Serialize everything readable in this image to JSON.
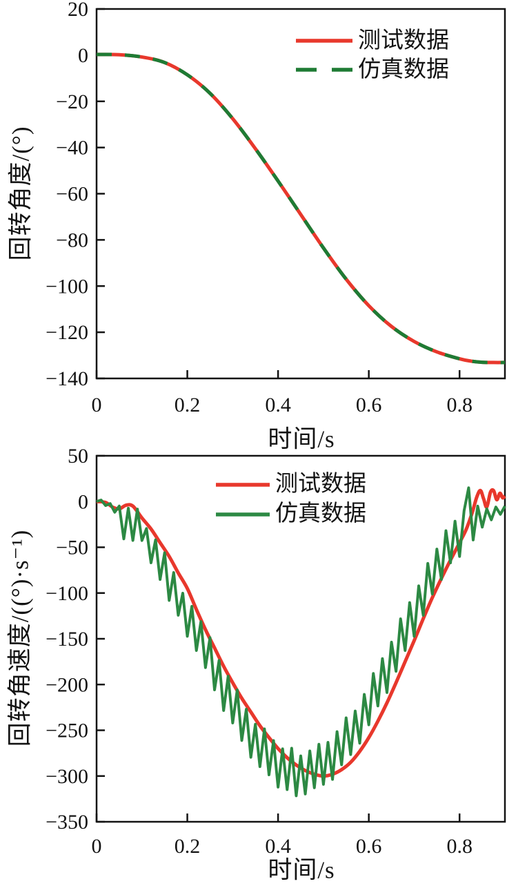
{
  "figure": {
    "background": "#ffffff",
    "axis_color": "#131313"
  },
  "chart_data": [
    {
      "id": "rotation-angle",
      "type": "line",
      "title": "",
      "grid": false,
      "legend_position": "top-right-inside",
      "x_axis": {
        "title": "时间/s",
        "min": 0,
        "max": 0.9,
        "ticks": [
          0,
          0.2,
          0.4,
          0.6,
          0.8
        ],
        "tick_labels": [
          "0",
          "0.2",
          "0.4",
          "0.6",
          "0.8"
        ]
      },
      "y_axis": {
        "title": "回转角度/(°)",
        "min": -140,
        "max": 20,
        "ticks": [
          20,
          0,
          -20,
          -40,
          -60,
          -80,
          -100,
          -120,
          -140
        ],
        "tick_labels": [
          "20",
          "0",
          "−20",
          "−40",
          "−60",
          "−80",
          "−100",
          "−120",
          "−140"
        ]
      },
      "legend": [
        {
          "label": "测试数据",
          "color": "#e8382c",
          "dash": null
        },
        {
          "label": "仿真数据",
          "color": "#1e7b34",
          "dash": "30 22"
        }
      ],
      "series": [
        {
          "name": "测试数据",
          "color": "#e8382c",
          "width": 5,
          "dash": null,
          "smooth": true,
          "points": [
            [
              0,
              0.3
            ],
            [
              0.05,
              0.2
            ],
            [
              0.1,
              -0.8
            ],
            [
              0.15,
              -3.2
            ],
            [
              0.2,
              -8.5
            ],
            [
              0.25,
              -16.5
            ],
            [
              0.3,
              -27.5
            ],
            [
              0.35,
              -40.5
            ],
            [
              0.4,
              -54.5
            ],
            [
              0.45,
              -69
            ],
            [
              0.5,
              -83.5
            ],
            [
              0.55,
              -97
            ],
            [
              0.6,
              -108.5
            ],
            [
              0.65,
              -117.5
            ],
            [
              0.7,
              -124
            ],
            [
              0.75,
              -128.5
            ],
            [
              0.8,
              -131.5
            ],
            [
              0.825,
              -132.5
            ],
            [
              0.85,
              -133
            ],
            [
              0.875,
              -133.1
            ],
            [
              0.9,
              -133.1
            ]
          ]
        },
        {
          "name": "仿真数据",
          "color": "#1e7b34",
          "width": 5,
          "dash": "22 19",
          "smooth": true,
          "points_ref": 0
        }
      ]
    },
    {
      "id": "rotation-velocity",
      "type": "line",
      "title": "",
      "grid": false,
      "legend_position": "top-center-inside",
      "x_axis": {
        "title": "时间/s",
        "min": 0,
        "max": 0.9,
        "ticks": [
          0,
          0.2,
          0.4,
          0.6,
          0.8
        ],
        "tick_labels": [
          "0",
          "0.2",
          "0.4",
          "0.6",
          "0.8"
        ]
      },
      "y_axis": {
        "title": "回转角速度/((°)·s⁻¹)",
        "min": -350,
        "max": 50,
        "ticks": [
          50,
          0,
          -50,
          -100,
          -150,
          -200,
          -250,
          -300,
          -350
        ],
        "tick_labels": [
          "50",
          "0",
          "−50",
          "−100",
          "−150",
          "−200",
          "−250",
          "−300",
          "−350"
        ]
      },
      "legend": [
        {
          "label": "测试数据",
          "color": "#e8382c",
          "dash": null
        },
        {
          "label": "仿真数据",
          "color": "#2c8943",
          "dash": null
        }
      ],
      "series": [
        {
          "name": "测试数据",
          "color": "#e8382c",
          "width": 5,
          "dash": null,
          "smooth": true,
          "points": [
            [
              0,
              0
            ],
            [
              0.02,
              -1
            ],
            [
              0.035,
              -6
            ],
            [
              0.05,
              -8
            ],
            [
              0.065,
              -4
            ],
            [
              0.08,
              -5
            ],
            [
              0.1,
              -18
            ],
            [
              0.12,
              -30
            ],
            [
              0.14,
              -45
            ],
            [
              0.16,
              -60
            ],
            [
              0.18,
              -78
            ],
            [
              0.2,
              -95
            ],
            [
              0.22,
              -118
            ],
            [
              0.24,
              -140
            ],
            [
              0.26,
              -160
            ],
            [
              0.28,
              -180
            ],
            [
              0.3,
              -198
            ],
            [
              0.32,
              -215
            ],
            [
              0.34,
              -230
            ],
            [
              0.36,
              -245
            ],
            [
              0.38,
              -258
            ],
            [
              0.4,
              -270
            ],
            [
              0.42,
              -280
            ],
            [
              0.44,
              -288
            ],
            [
              0.46,
              -294
            ],
            [
              0.48,
              -298
            ],
            [
              0.5,
              -300
            ],
            [
              0.52,
              -298
            ],
            [
              0.54,
              -293
            ],
            [
              0.56,
              -285
            ],
            [
              0.58,
              -273
            ],
            [
              0.6,
              -258
            ],
            [
              0.62,
              -240
            ],
            [
              0.64,
              -220
            ],
            [
              0.66,
              -198
            ],
            [
              0.68,
              -175
            ],
            [
              0.7,
              -152
            ],
            [
              0.72,
              -128
            ],
            [
              0.74,
              -105
            ],
            [
              0.76,
              -84
            ],
            [
              0.78,
              -64
            ],
            [
              0.8,
              -45
            ],
            [
              0.815,
              -30
            ],
            [
              0.828,
              -12
            ],
            [
              0.838,
              5
            ],
            [
              0.846,
              12
            ],
            [
              0.853,
              3
            ],
            [
              0.86,
              -6
            ],
            [
              0.868,
              10
            ],
            [
              0.875,
              12
            ],
            [
              0.882,
              2
            ],
            [
              0.889,
              9
            ],
            [
              0.895,
              4
            ],
            [
              0.9,
              6
            ]
          ]
        },
        {
          "name": "仿真数据",
          "color": "#2c8943",
          "width": 4,
          "dash": null,
          "smooth": false,
          "t0": 0,
          "dt": 0.01,
          "values": [
            0,
            1.6,
            -4.4,
            -2.2,
            -11.7,
            -4.9,
            -40.8,
            -7.3,
            -42.5,
            -8.3,
            -42.6,
            -29.5,
            -67,
            -41.9,
            -85.2,
            -56,
            -108.1,
            -77.6,
            -124.3,
            -100.2,
            -147.3,
            -114.5,
            -162.8,
            -131.2,
            -181.5,
            -148.7,
            -205.8,
            -173.7,
            -228.4,
            -190.9,
            -242,
            -205.8,
            -261.1,
            -227,
            -279.5,
            -243.4,
            -289.7,
            -248.5,
            -298.7,
            -261.2,
            -312.1,
            -270.3,
            -314.8,
            -269.6,
            -321.6,
            -278,
            -319.6,
            -272.6,
            -312.8,
            -265.3,
            -309.1,
            -263.2,
            -303.7,
            -251.5,
            -287.7,
            -236.4,
            -276.5,
            -229,
            -264.1,
            -210.8,
            -244,
            -187.9,
            -223.4,
            -171.7,
            -208.8,
            -153.7,
            -185.5,
            -128.2,
            -162.8,
            -110.5,
            -147.3,
            -92.2,
            -124.3,
            -67.6,
            -101.1,
            -52,
            -85.2,
            -31.9,
            -67,
            -21.5,
            -60,
            -10,
            15,
            -42,
            -5,
            -28,
            -8,
            -20,
            -6,
            -14,
            -5
          ]
        }
      ]
    }
  ]
}
